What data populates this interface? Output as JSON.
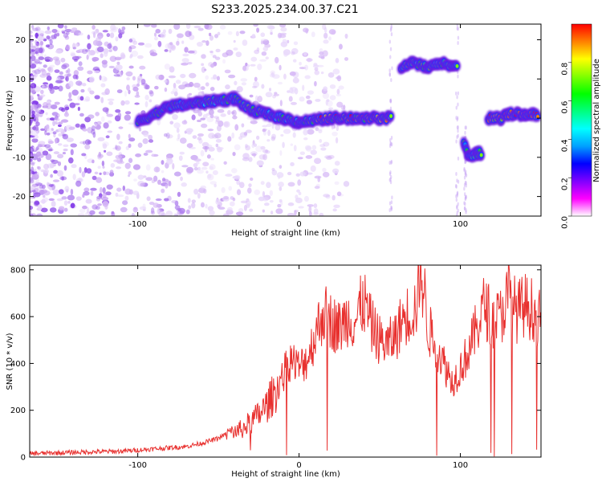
{
  "title": "S233.2025.234.00.37.C21",
  "colors": {
    "snr_line": "#e8302e",
    "axis": "#000000",
    "background": "#ffffff"
  },
  "chart_data": [
    {
      "type": "heatmap",
      "name": "spectrogram",
      "xlabel": "Height of straight line (km)",
      "ylabel": "Frequency (Hz)",
      "xlim": [
        -167,
        150
      ],
      "ylim": [
        -25,
        24
      ],
      "xticks": [
        -100,
        0,
        100
      ],
      "yticks": [
        -20,
        -10,
        0,
        10,
        20
      ],
      "colorbar": {
        "label": "Normalized spectral amplitude",
        "range": [
          0,
          1
        ],
        "ticks": [
          0.0,
          0.2,
          0.4,
          0.6,
          0.8
        ],
        "colormap": [
          "#ffffff",
          "#ff00ff",
          "#7f00ff",
          "#0000ff",
          "#00a0ff",
          "#00ffff",
          "#00ff80",
          "#00ff00",
          "#80ff00",
          "#ffff00",
          "#ff8000",
          "#ff0000"
        ]
      },
      "tracks": [
        {
          "segment": "rising",
          "points": [
            [
              -100,
              -1
            ],
            [
              -80,
              3
            ],
            [
              -60,
              4
            ],
            [
              -40,
              5
            ],
            [
              -30,
              2
            ],
            [
              -20,
              1
            ]
          ]
        },
        {
          "segment": "flat_near_zero",
          "points": [
            [
              -20,
              1
            ],
            [
              0,
              -1
            ],
            [
              20,
              0
            ],
            [
              40,
              0
            ],
            [
              57,
              0
            ]
          ]
        },
        {
          "segment": "high_branch",
          "points": [
            [
              63,
              13
            ],
            [
              70,
              14
            ],
            [
              80,
              13
            ],
            [
              90,
              14
            ],
            [
              98,
              13
            ]
          ]
        },
        {
          "segment": "dip",
          "points": [
            [
              102,
              -6
            ],
            [
              105,
              -10
            ],
            [
              110,
              -9
            ],
            [
              113,
              -9
            ]
          ]
        },
        {
          "segment": "upper_right",
          "points": [
            [
              117,
              0
            ],
            [
              125,
              0
            ],
            [
              130,
              1
            ],
            [
              140,
              1
            ],
            [
              148,
              1
            ]
          ]
        }
      ]
    },
    {
      "type": "line",
      "name": "snr",
      "xlabel": "Height of straight line (km)",
      "ylabel": "SNR (10 * v/v)",
      "xlim": [
        -167,
        150
      ],
      "ylim": [
        0,
        820
      ],
      "xticks": [
        -100,
        0,
        100
      ],
      "yticks": [
        0,
        200,
        400,
        600,
        800
      ],
      "series": [
        {
          "name": "SNR",
          "x": [
            -167,
            -150,
            -130,
            -110,
            -90,
            -80,
            -70,
            -60,
            -50,
            -45,
            -40,
            -35,
            -30,
            -25,
            -20,
            -15,
            -10,
            -5,
            0,
            5,
            10,
            15,
            20,
            25,
            30,
            35,
            40,
            45,
            50,
            55,
            60,
            65,
            70,
            73,
            75,
            78,
            80,
            85,
            90,
            95,
            100,
            105,
            110,
            115,
            120,
            125,
            130,
            135,
            140,
            145,
            150
          ],
          "y": [
            15,
            18,
            22,
            25,
            35,
            40,
            45,
            60,
            80,
            100,
            110,
            120,
            150,
            180,
            220,
            280,
            350,
            420,
            380,
            420,
            520,
            620,
            580,
            550,
            600,
            580,
            670,
            560,
            500,
            480,
            520,
            600,
            620,
            650,
            820,
            680,
            550,
            480,
            400,
            320,
            380,
            450,
            550,
            650,
            580,
            600,
            700,
            620,
            650,
            630,
            580
          ]
        }
      ]
    }
  ]
}
